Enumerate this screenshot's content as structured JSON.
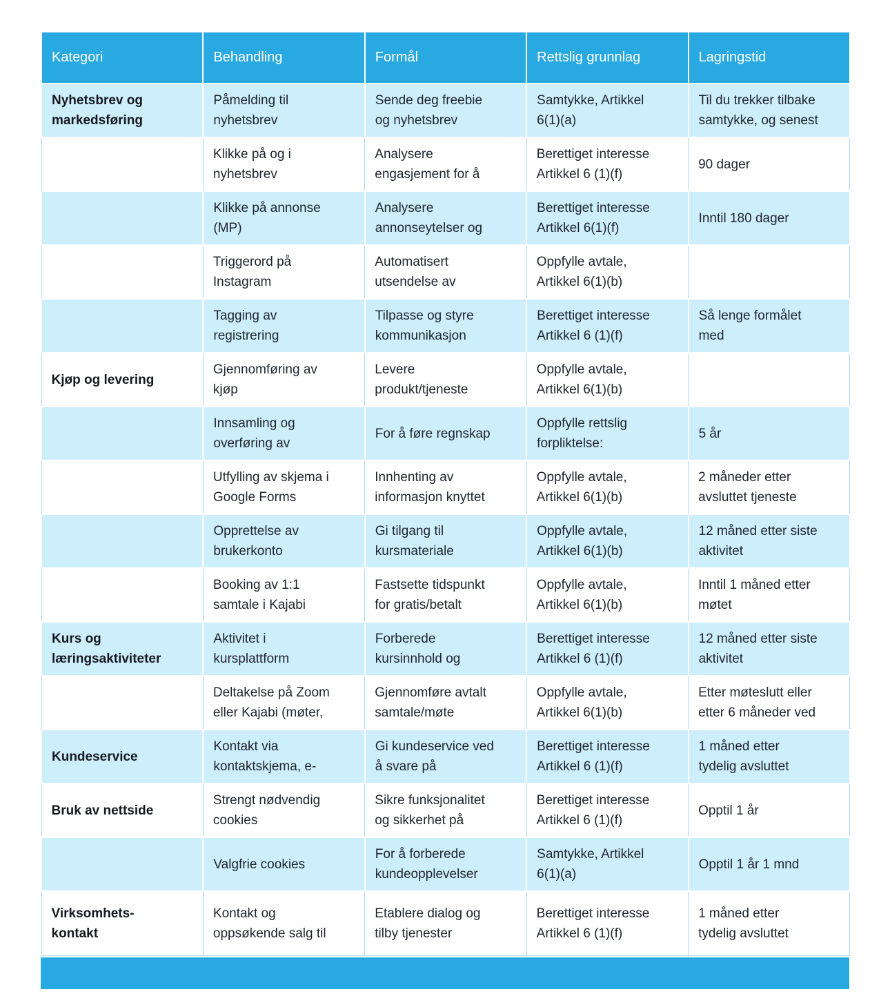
{
  "colors": {
    "header_bg": "#29a9e1",
    "row_alt_bg": "#cdeefb",
    "row_bg": "#ffffff",
    "header_text": "#ffffff",
    "body_text": "#20262e",
    "grid_line": "#a9dcf3"
  },
  "table": {
    "columns": [
      "Kategori",
      "Behandling",
      "Formål",
      "Rettslig grunnlag",
      "Lagringstid"
    ],
    "rows": [
      [
        "Nyhetsbrev og\nmarkedsføring",
        "Påmelding til\nnyhetsbrev",
        "Sende deg freebie\nog nyhetsbrev",
        "Samtykke, Artikkel\n6(1)(a)",
        "Til du trekker tilbake\nsamtykke, og senest"
      ],
      [
        "",
        "Klikke på og i\nnyhetsbrev",
        "Analysere\nengasjement for å",
        "Berettiget interesse\nArtikkel 6 (1)(f)",
        "90 dager"
      ],
      [
        "",
        "Klikke på annonse\n(MP)",
        "Analysere\nannonseytelser og",
        "Berettiget interesse\nArtikkel 6(1)(f)",
        "Inntil 180 dager"
      ],
      [
        "",
        "Triggerord på\nInstagram",
        "Automatisert\nutsendelse av",
        "Oppfylle avtale,\nArtikkel 6(1)(b)",
        ""
      ],
      [
        "",
        "Tagging av\nregistrering",
        "Tilpasse og styre\nkommunikasjon",
        "Berettiget interesse\nArtikkel 6 (1)(f)",
        "Så lenge formålet\nmed"
      ],
      [
        "Kjøp og levering",
        "Gjennomføring av\nkjøp",
        "Levere\nprodukt/tjeneste",
        "Oppfylle avtale,\nArtikkel 6(1)(b)",
        ""
      ],
      [
        "",
        "Innsamling og\noverføring av",
        "For å føre regnskap",
        "Oppfylle rettslig\nforpliktelse:",
        "5 år"
      ],
      [
        "",
        "Utfylling av skjema i\nGoogle Forms",
        "Innhenting av\ninformasjon knyttet",
        "Oppfylle avtale,\nArtikkel 6(1)(b)",
        "2 måneder etter\navsluttet tjeneste"
      ],
      [
        "",
        "Opprettelse av\nbrukerkonto",
        "Gi tilgang til\nkursmateriale",
        "Oppfylle avtale,\nArtikkel 6(1)(b)",
        "12 måned etter siste\naktivitet"
      ],
      [
        "",
        "Booking av 1:1\nsamtale i Kajabi",
        "Fastsette tidspunkt\nfor gratis/betalt",
        "Oppfylle avtale,\nArtikkel 6(1)(b)",
        "Inntil 1 måned etter\nmøtet"
      ],
      [
        "Kurs og\nlæringsaktiviteter",
        "Aktivitet i\nkursplattform",
        "Forberede\nkursinnhold og",
        "Berettiget interesse\nArtikkel 6 (1)(f)",
        "12 måned etter siste\naktivitet"
      ],
      [
        "",
        "Deltakelse på Zoom\neller Kajabi (møter,",
        "Gjennomføre avtalt\nsamtale/møte",
        "Oppfylle avtale,\nArtikkel 6(1)(b)",
        "Etter møteslutt eller\netter 6 måneder ved"
      ],
      [
        "Kundeservice",
        "Kontakt via\nkontaktskjema, e-",
        "Gi kundeservice ved\nå svare på",
        "Berettiget interesse\nArtikkel 6 (1)(f)",
        "1 måned etter\ntydelig avsluttet"
      ],
      [
        "Bruk av nettside",
        "Strengt nødvendig\ncookies",
        "Sikre funksjonalitet\nog sikkerhet på",
        "Berettiget interesse\nArtikkel 6 (1)(f)",
        "Opptil 1 år"
      ],
      [
        "",
        "Valgfrie cookies",
        "For å forberede\nkundeopplevelser",
        "Samtykke, Artikkel\n6(1)(a)",
        "Opptil 1 år 1 mnd"
      ],
      [
        "Virksomhets-\nkontakt",
        "Kontakt og\noppsøkende salg til",
        "Etablere dialog og\ntilby tjenester",
        "Berettiget interesse\nArtikkel 6 (1)(f)",
        "1 måned etter\ntydelig avsluttet"
      ]
    ]
  }
}
